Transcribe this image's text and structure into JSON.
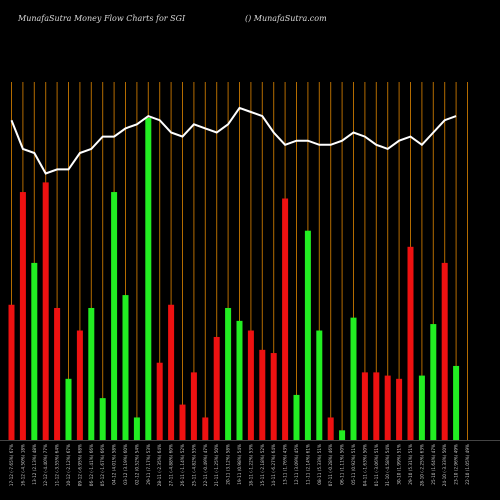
{
  "header": {
    "title_left": "MunafaSutra  Money Flow  Charts for SGI",
    "title_right": "() MunafaSutra.com"
  },
  "colors": {
    "background": "#000000",
    "grid": "#b36b00",
    "up": "#22ee22",
    "down": "#ee1111",
    "line": "#ffffff",
    "label": "#cfcfcf"
  },
  "chart_data": {
    "type": "bar",
    "ylim": [
      0,
      100
    ],
    "bar_colors": [
      "red",
      "red",
      "green",
      "red",
      "red",
      "green",
      "red",
      "green",
      "green",
      "green",
      "green",
      "green",
      "green",
      "red",
      "red",
      "red",
      "red",
      "red",
      "red",
      "green",
      "green",
      "red",
      "red",
      "red",
      "red",
      "green",
      "green",
      "green",
      "red",
      "green",
      "green",
      "red",
      "red",
      "red",
      "red",
      "red",
      "green",
      "green",
      "red",
      "green",
      "green"
    ],
    "values": [
      42,
      77,
      55,
      80,
      41,
      19,
      34,
      41,
      13,
      77,
      45,
      7,
      100,
      24,
      42,
      11,
      21,
      7,
      32,
      41,
      37,
      34,
      28,
      27,
      75,
      14,
      65,
      34,
      7,
      3,
      38,
      21,
      21,
      20,
      19,
      60,
      20,
      36,
      55,
      23,
      0
    ],
    "line_values": [
      78,
      71,
      70,
      65,
      66,
      66,
      70,
      71,
      74,
      74,
      76,
      77,
      79,
      78,
      75,
      74,
      77,
      76,
      75,
      77,
      81,
      80,
      79,
      75,
      72,
      73,
      73,
      72,
      72,
      73,
      75,
      74,
      72,
      71,
      73,
      74,
      72,
      75,
      78,
      79,
      0
    ],
    "x_labels": [
      "17-12 (-7.65%) 67%",
      "16-12 (-4.50%) 18%",
      "13-12 (2.13%) 48%",
      "12-12 (-4.40%) 77%",
      "11-12 (-3.55%) 64%",
      "10-12 (-2.12%) 67%",
      "09-12 (-6.95%) 68%",
      "06-12 (-1.41%) 66%",
      "05-12 (-1.67%) 66%",
      "04-12 (4.01%) 58%",
      "03-12 (3.19%) 60%",
      "02-12 (0.52%) 54%",
      "29-11 (7.17%) 53%",
      "28-11 (-2.35%) 64%",
      "27-11 (-4.88%) 60%",
      "26-11 (-1.14%) 52%",
      "25-11 (-4.82%) 55%",
      "22-11 (-0.49%) 47%",
      "21-11 (-1.25%) 50%",
      "20-11 (3.12%) 58%",
      "19-11 (0.98%) 54%",
      "18-11 (-1.22%) 53%",
      "15-11 (-2.18%) 52%",
      "14-11 (-6.27%) 64%",
      "13-11 (1.76%) 43%",
      "12-11 (3.09%) 45%",
      "11-11 (2.14%) 61%",
      "08-11 (5.33%) 51%",
      "07-11 (-0.28%) 46%",
      "06-11 (1.11%) 50%",
      "05-11 (0.92%) 51%",
      "04-11 (-1.63%) 50%",
      "01-11 (-3.06%) 51%",
      "31-10 (-4.58%) 54%",
      "30-10 (1.99%) 51%",
      "29-10 (5.31%) 51%",
      "28-10 (-2.25%) 63%",
      "25-10 (1.64%) 47%",
      "24-10 (-3.33%) 50%",
      "23-10 (2.96%) 49%",
      "22-10 (1.05%) 49%"
    ]
  }
}
